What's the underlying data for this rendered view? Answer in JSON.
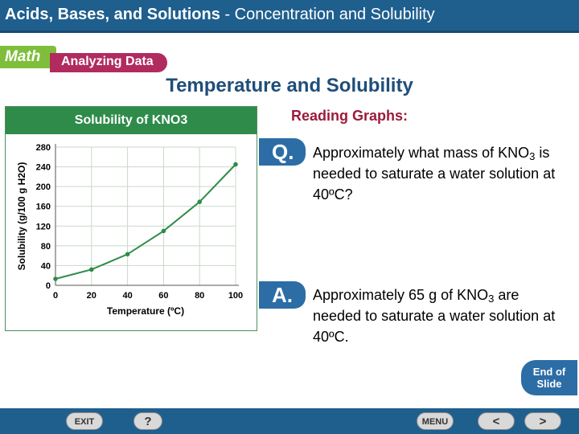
{
  "header": {
    "title_main": "Acids, Bases, and Solutions",
    "title_sep": " - ",
    "title_sub": "Concentration and Solubility"
  },
  "tabs": {
    "math": "Math",
    "analyzing": "Analyzing Data"
  },
  "slide_title": "Temperature and Solubility",
  "chart_data": {
    "type": "line",
    "title": "Solubility of KNO3",
    "xlabel": "Temperature (ºC)",
    "ylabel": "Solubility (g/100 g H2O)",
    "x_ticks": [
      "0",
      "20",
      "40",
      "60",
      "80",
      "100"
    ],
    "y_ticks": [
      "0",
      "40",
      "80",
      "120",
      "160",
      "200",
      "240",
      "280"
    ],
    "xlim": [
      0,
      100
    ],
    "ylim": [
      0,
      280
    ],
    "series": [
      {
        "x": [
          0,
          20,
          40,
          60,
          80,
          100
        ],
        "y": [
          13,
          32,
          63,
          110,
          169,
          245
        ]
      }
    ],
    "colors": {
      "line": "#2e8b4a"
    }
  },
  "reading": {
    "title": "Reading Graphs:",
    "q_badge": "Q.",
    "a_badge": "A.",
    "question": {
      "pre": "Approximately what mass of KNO",
      "sub": "3",
      "post": " is needed to saturate a water solution at 40ºC?"
    },
    "answer": {
      "pre": "Approximately 65 g of KNO",
      "sub": "3",
      "post": " are needed to saturate a water solution at 40ºC."
    }
  },
  "end_slide": {
    "line1": "End of",
    "line2": "Slide"
  },
  "footer": {
    "exit": "EXIT",
    "help": "?",
    "menu": "MENU",
    "prev": "<",
    "next": ">"
  },
  "colors": {
    "header": "#1f5f8e",
    "chart_green": "#2e8b4a",
    "badge": "#2c6da6",
    "reading": "#9b1b3a"
  }
}
